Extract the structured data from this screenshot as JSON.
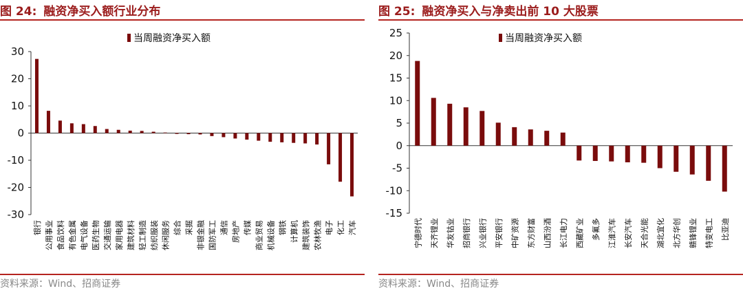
{
  "panels": [
    {
      "figure": "图 24:",
      "title": "融资净买入额行业分布",
      "source": "资料来源：Wind、招商证券"
    },
    {
      "figure": "图 25:",
      "title": "融资净买入与净卖出前 10 大股票",
      "source": "资料来源：Wind、招商证券"
    }
  ],
  "colors": {
    "accent": "#b5241f",
    "bar": "#7a0c0c",
    "title": "#9b1c1c"
  },
  "chart_data": [
    {
      "type": "bar",
      "title": "融资净买入额行业分布",
      "categories": [
        "银行",
        "公用事业",
        "食品饮料",
        "有色金属",
        "电气设备",
        "医药生物",
        "交通运输",
        "家用电器",
        "建筑材料",
        "轻工制造",
        "纺织服装",
        "休闲服务",
        "综合",
        "采掘",
        "非银金融",
        "国防军工",
        "通信",
        "房地产",
        "传媒",
        "商业贸易",
        "机械设备",
        "钢铁",
        "计算机",
        "建筑装饰",
        "农林牧渔",
        "电子",
        "化工",
        "汽车"
      ],
      "series": [
        {
          "name": "当周融资净买入额",
          "values": [
            27.3,
            8.2,
            4.6,
            3.6,
            3.3,
            2.6,
            1.5,
            1.2,
            0.9,
            0.8,
            0.5,
            0.2,
            -0.3,
            -0.4,
            -0.5,
            -1.1,
            -1.5,
            -2.0,
            -2.4,
            -2.8,
            -3.2,
            -3.4,
            -3.6,
            -3.8,
            -4.2,
            -11.5,
            -17.9,
            -23.3
          ]
        }
      ],
      "yticks": [
        30,
        20,
        10,
        0,
        -10,
        -20,
        -30
      ],
      "ylim": [
        -30,
        30
      ],
      "legend": "top",
      "grid": false
    },
    {
      "type": "bar",
      "title": "融资净买入与净卖出前 10 大股票",
      "categories": [
        "宁德时代",
        "天齐锂业",
        "华友钴业",
        "招商银行",
        "兴业银行",
        "平安银行",
        "中矿资源",
        "东方财富",
        "山西汾酒",
        "长江电力",
        "西藏矿业",
        "多氟多",
        "江淮汽车",
        "长安汽车",
        "天合光能",
        "湖北宜化",
        "北方华创",
        "赣锋锂业",
        "特变电工",
        "比亚迪"
      ],
      "series": [
        {
          "name": "当周融资净买入额",
          "values": [
            18.8,
            10.6,
            9.3,
            8.5,
            7.7,
            5.1,
            4.1,
            3.6,
            3.3,
            2.9,
            -3.3,
            -3.4,
            -3.5,
            -3.7,
            -3.8,
            -5.0,
            -5.8,
            -6.4,
            -7.8,
            -10.2
          ]
        }
      ],
      "yticks": [
        25,
        20,
        15,
        10,
        5,
        0,
        -5,
        -10,
        -15
      ],
      "ylim": [
        -15,
        25
      ],
      "legend": "top",
      "grid": false
    }
  ]
}
